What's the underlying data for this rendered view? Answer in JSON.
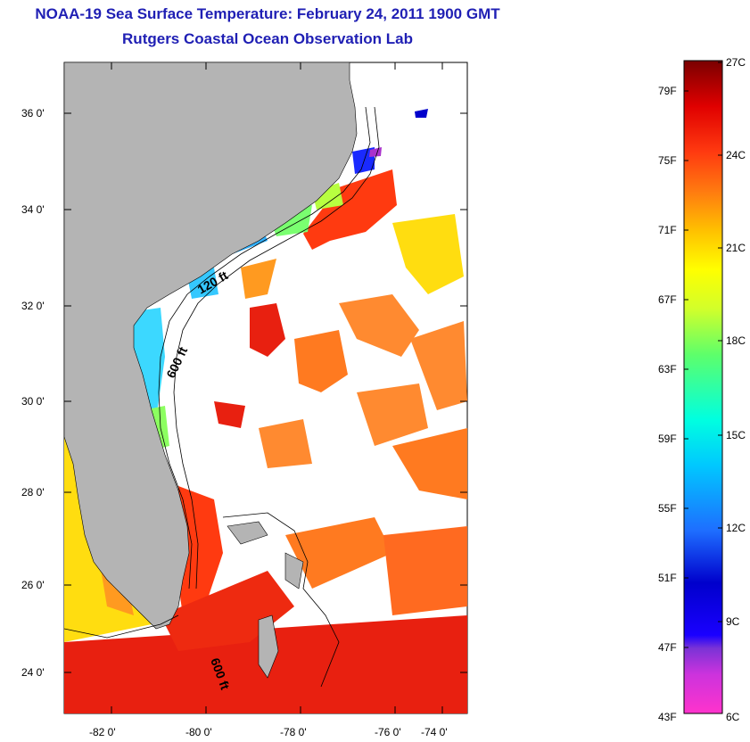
{
  "title": {
    "line1": "NOAA-19 Sea Surface Temperature:  February 24, 2011 1900 GMT",
    "line2": "Rutgers Coastal Ocean Observation Lab"
  },
  "map": {
    "lat_labels": [
      "36 0'",
      "34 0'",
      "32 0'",
      "30 0'",
      "28 0'",
      "26 0'",
      "24 0'"
    ],
    "lon_labels": [
      "-82 0'",
      "-80 0'",
      "-78 0'",
      "-76 0'",
      "-74 0'"
    ],
    "contour_labels": [
      "120 ft",
      "600 ft",
      "600 ft"
    ],
    "land_color": "#b4b4b4"
  },
  "colorbar": {
    "f_labels": [
      "79F",
      "75F",
      "71F",
      "67F",
      "63F",
      "59F",
      "55F",
      "51F",
      "47F",
      "43F"
    ],
    "c_labels": [
      "27C",
      "24C",
      "21C",
      "18C",
      "15C",
      "12C",
      "9C",
      "6C"
    ]
  }
}
